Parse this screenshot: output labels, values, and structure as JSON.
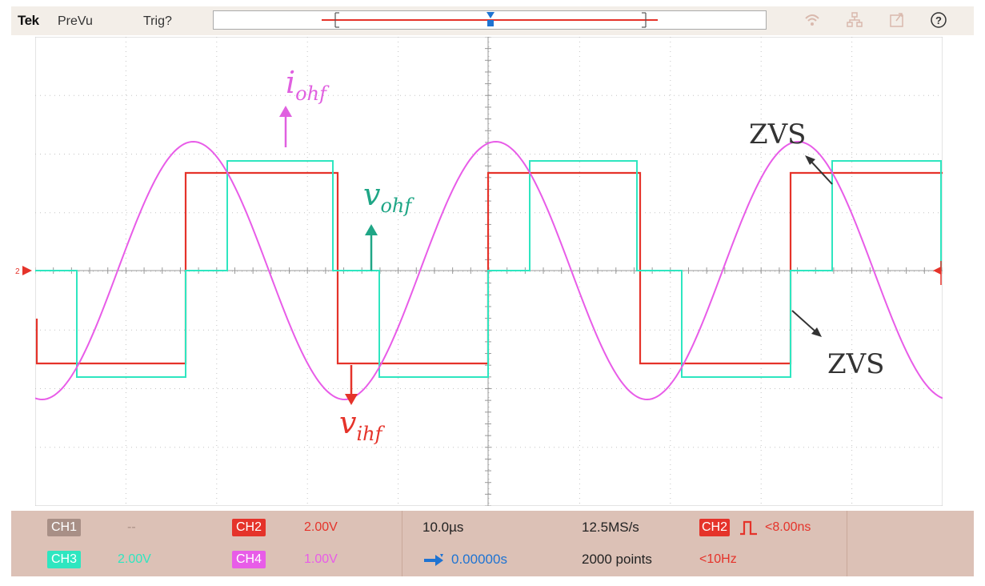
{
  "topbar": {
    "brand": "Tek",
    "menu_prevu": "PreVu",
    "menu_trig": "Trig?",
    "trigger_marker": "T",
    "help_icon": "?"
  },
  "screen": {
    "ch2_marker": "2",
    "annotations": {
      "i_ohf": {
        "main": "i",
        "sub": "ohf"
      },
      "v_ohf": {
        "main": "v",
        "sub": "ohf"
      },
      "v_ihf": {
        "main": "v",
        "sub": "ihf"
      },
      "zvs_top": "ZVS",
      "zvs_bottom": "ZVS"
    }
  },
  "channels": {
    "ch1": {
      "label": "CH1",
      "value": "--"
    },
    "ch2": {
      "label": "CH2",
      "value": "2.00V"
    },
    "ch3": {
      "label": "CH3",
      "value": "2.00V"
    },
    "ch4": {
      "label": "CH4",
      "value": "1.00V"
    }
  },
  "horizontal": {
    "scale": "10.0µs",
    "position": "0.00000s",
    "sample_rate": "12.5MS/s",
    "record_length": "2000 points"
  },
  "trigger": {
    "source": "CH2",
    "type_icon": "pulse-icon",
    "condition": "<8.00ns",
    "frequency": "<10Hz"
  },
  "colors": {
    "ch2": "#e5332a",
    "ch3": "#2ee6c0",
    "ch4": "#e85ce8",
    "ch1_badge": "#a88f86",
    "i_annot": "#e060e0",
    "v_ohf_annot": "#1fa686",
    "v_ihf_annot": "#e5332a",
    "zvs": "#333333",
    "trigger_blue": "#1e73d2"
  }
}
